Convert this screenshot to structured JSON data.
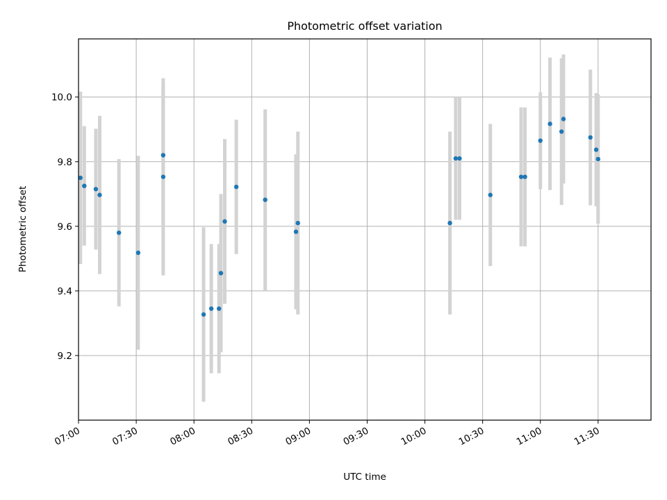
{
  "chart_data": {
    "type": "scatter",
    "title": "Photometric offset variation",
    "xlabel": "UTC time",
    "ylabel": "Photometric offset",
    "x_ticks": [
      "07:00",
      "07:30",
      "08:00",
      "08:30",
      "09:00",
      "09:30",
      "10:00",
      "10:30",
      "11:00",
      "11:30"
    ],
    "y_ticks": [
      9.2,
      9.4,
      9.6,
      9.8,
      10.0
    ],
    "xlim_minutes_utc": [
      420,
      717.5
    ],
    "ylim": [
      9.0,
      10.18
    ],
    "grid": true,
    "colors": {
      "points": "#1f77b4",
      "errorbars": "#d3d3d3",
      "grid": "#b0b0b0"
    },
    "series": [
      {
        "points": [
          {
            "x": "07:01",
            "y": 9.75,
            "err": 0.267
          },
          {
            "x": "07:03",
            "y": 9.725,
            "err": 0.185
          },
          {
            "x": "07:09",
            "y": 9.715,
            "err": 0.187
          },
          {
            "x": "07:11",
            "y": 9.697,
            "err": 0.245
          },
          {
            "x": "07:21",
            "y": 9.58,
            "err": 0.228
          },
          {
            "x": "07:31",
            "y": 9.518,
            "err": 0.3
          },
          {
            "x": "07:44",
            "y": 9.82,
            "err": 0.22
          },
          {
            "x": "07:44",
            "y": 9.753,
            "err": 0.305
          },
          {
            "x": "08:05",
            "y": 9.327,
            "err": 0.27
          },
          {
            "x": "08:09",
            "y": 9.345,
            "err": 0.2
          },
          {
            "x": "08:13",
            "y": 9.345,
            "err": 0.2
          },
          {
            "x": "08:14",
            "y": 9.455,
            "err": 0.245
          },
          {
            "x": "08:16",
            "y": 9.615,
            "err": 0.255
          },
          {
            "x": "08:22",
            "y": 9.722,
            "err": 0.208
          },
          {
            "x": "08:37",
            "y": 9.682,
            "err": 0.28
          },
          {
            "x": "08:53",
            "y": 9.583,
            "err": 0.24
          },
          {
            "x": "08:54",
            "y": 9.61,
            "err": 0.283
          },
          {
            "x": "10:13",
            "y": 9.61,
            "err": 0.283
          },
          {
            "x": "10:16",
            "y": 9.81,
            "err": 0.19
          },
          {
            "x": "10:18",
            "y": 9.81,
            "err": 0.19
          },
          {
            "x": "10:34",
            "y": 9.697,
            "err": 0.22
          },
          {
            "x": "10:50",
            "y": 9.753,
            "err": 0.215
          },
          {
            "x": "10:52",
            "y": 9.753,
            "err": 0.215
          },
          {
            "x": "11:00",
            "y": 9.865,
            "err": 0.15
          },
          {
            "x": "11:05",
            "y": 9.917,
            "err": 0.205
          },
          {
            "x": "11:11",
            "y": 9.893,
            "err": 0.227
          },
          {
            "x": "11:12",
            "y": 9.932,
            "err": 0.2
          },
          {
            "x": "11:26",
            "y": 9.875,
            "err": 0.21
          },
          {
            "x": "11:29",
            "y": 9.837,
            "err": 0.175
          },
          {
            "x": "11:30",
            "y": 9.808,
            "err": 0.2
          }
        ]
      }
    ]
  }
}
